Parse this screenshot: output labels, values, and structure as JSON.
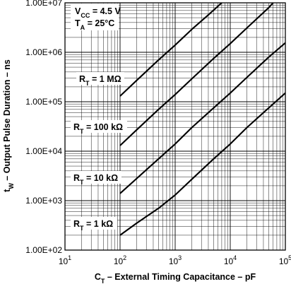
{
  "chart_data": {
    "type": "line",
    "title": "",
    "xlabel": "C_T – External Timing Capacitance – pF",
    "ylabel": "t_W – Output Pulse Duration – ns",
    "x_scale": "log",
    "y_scale": "log",
    "xlim": [
      10,
      100000
    ],
    "ylim": [
      100,
      10000000
    ],
    "grid": true,
    "x_tick_labels": [
      {
        "base": "10",
        "exp": "1"
      },
      {
        "base": "10",
        "exp": "2"
      },
      {
        "base": "10",
        "exp": "3"
      },
      {
        "base": "10",
        "exp": "4"
      },
      {
        "base": "10",
        "exp": "5"
      }
    ],
    "y_tick_labels": [
      "1.00E+02",
      "1.00E+03",
      "1.00E+04",
      "1.00E+05",
      "1.00E+06",
      "1.00E+07"
    ],
    "conditions": {
      "vcc": {
        "main": "V",
        "sub": "CC",
        "rest": " = 4.5 V"
      },
      "ta": {
        "main": "T",
        "sub": "A",
        "rest": " = 25°C"
      }
    },
    "series": [
      {
        "name": "R_T = 1 kΩ",
        "label": {
          "main": "R",
          "sub": "T",
          "rest": " = 1 kΩ"
        },
        "points": [
          [
            100,
            200
          ],
          [
            200,
            350
          ],
          [
            500,
            700
          ],
          [
            1000,
            1300
          ],
          [
            2000,
            2700
          ],
          [
            5000,
            7000
          ],
          [
            10000,
            14000
          ],
          [
            20000,
            30000
          ],
          [
            50000,
            75000
          ],
          [
            100000,
            150000
          ]
        ]
      },
      {
        "name": "R_T = 10 kΩ",
        "label": {
          "main": "R",
          "sub": "T",
          "rest": " = 10 kΩ"
        },
        "points": [
          [
            100,
            1400
          ],
          [
            200,
            2800
          ],
          [
            500,
            7000
          ],
          [
            1000,
            14000
          ],
          [
            2000,
            30000
          ],
          [
            5000,
            75000
          ],
          [
            10000,
            150000
          ],
          [
            20000,
            310000
          ],
          [
            50000,
            800000
          ],
          [
            100000,
            1550000
          ]
        ]
      },
      {
        "name": "R_T = 100 kΩ",
        "label": {
          "main": "R",
          "sub": "T",
          "rest": " = 100 kΩ"
        },
        "points": [
          [
            100,
            13000
          ],
          [
            200,
            27000
          ],
          [
            500,
            70000
          ],
          [
            1000,
            140000
          ],
          [
            2000,
            290000
          ],
          [
            5000,
            750000
          ],
          [
            10000,
            1500000
          ],
          [
            20000,
            3100000
          ],
          [
            50000,
            8000000
          ],
          [
            60000,
            10000000
          ]
        ]
      },
      {
        "name": "R_T = 1 MΩ",
        "label": {
          "main": "R",
          "sub": "T",
          "rest": " = 1 MΩ"
        },
        "points": [
          [
            100,
            130000
          ],
          [
            200,
            270000
          ],
          [
            500,
            700000
          ],
          [
            1000,
            1400000
          ],
          [
            2000,
            2900000
          ],
          [
            4000,
            5700000
          ],
          [
            7000,
            10000000
          ]
        ]
      }
    ]
  }
}
